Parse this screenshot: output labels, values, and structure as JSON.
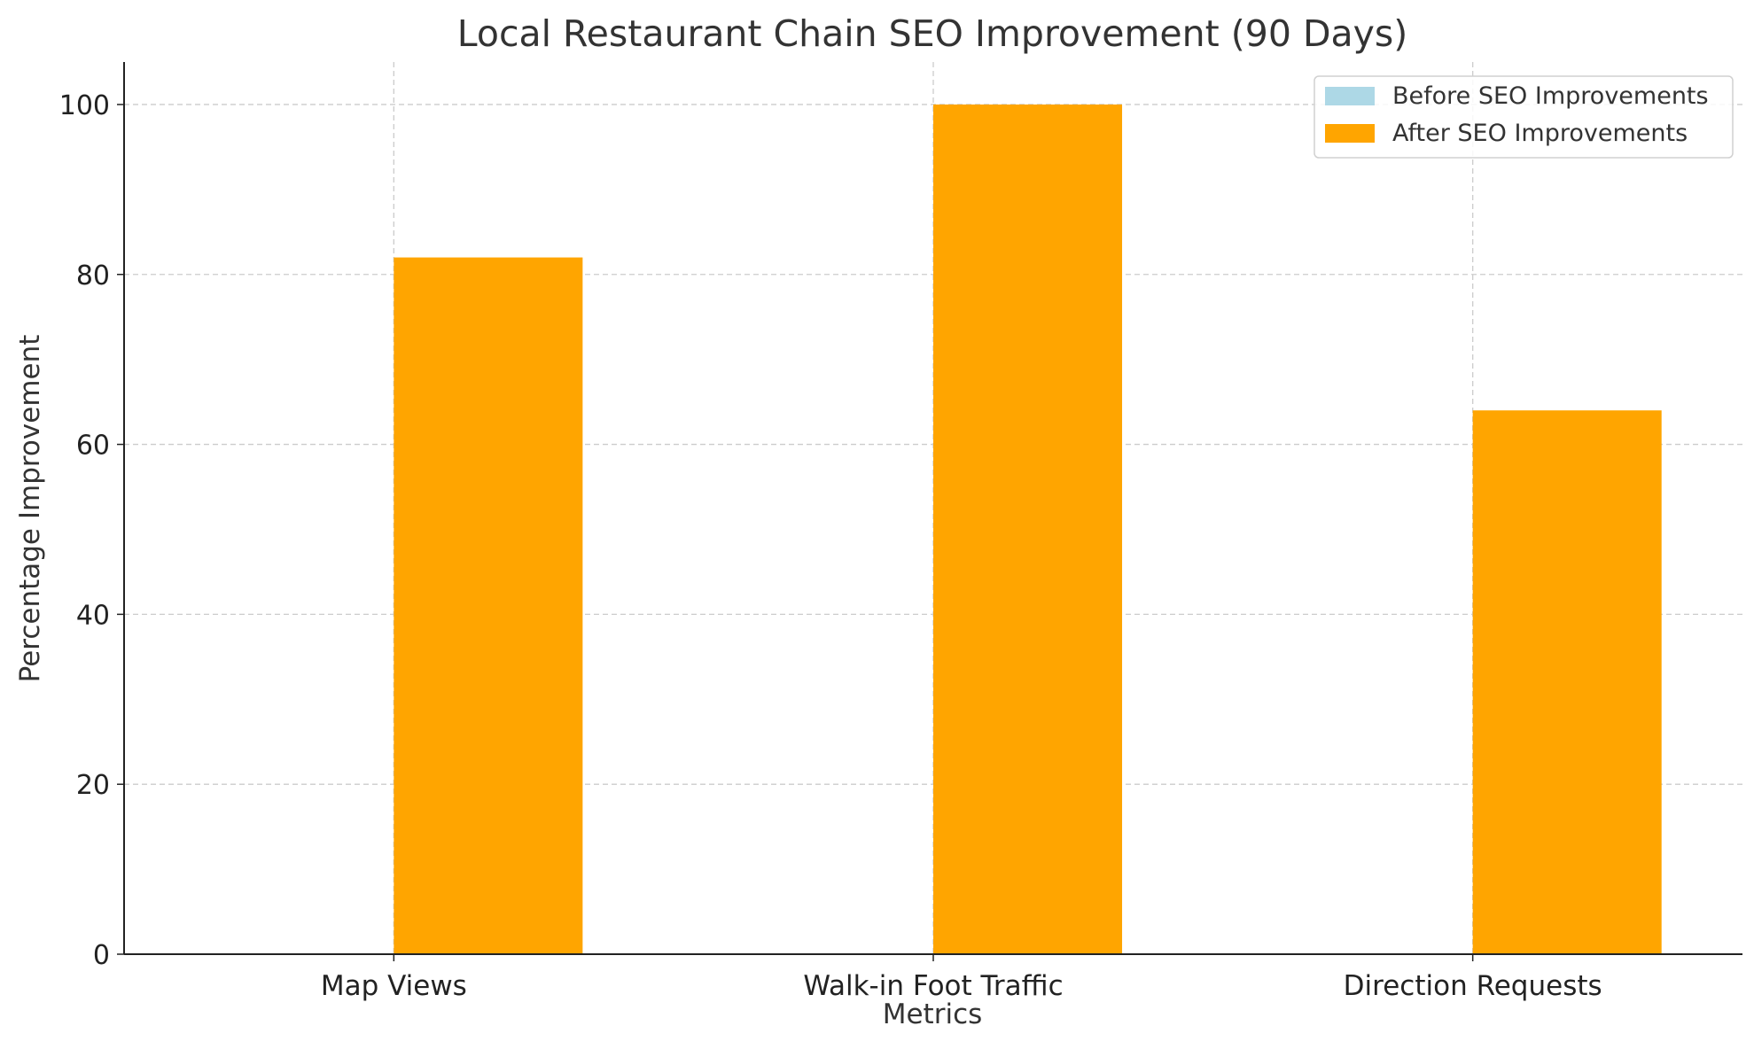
{
  "chart_data": {
    "type": "bar",
    "title": "Local Restaurant Chain SEO Improvement (90 Days)",
    "xlabel": "Metrics",
    "ylabel": "Percentage Improvement",
    "categories": [
      "Map Views",
      "Walk-in Foot Traffic",
      "Direction Requests"
    ],
    "series": [
      {
        "name": "Before SEO Improvements",
        "color": "#add8e6",
        "values": [
          0,
          0,
          0
        ]
      },
      {
        "name": "After SEO Improvements",
        "color": "#ffa500",
        "values": [
          82,
          100,
          64
        ]
      }
    ],
    "ylim": [
      0,
      105
    ],
    "yticks": [
      0,
      20,
      40,
      60,
      80,
      100
    ],
    "grid": true,
    "legend_position": "top-right"
  }
}
